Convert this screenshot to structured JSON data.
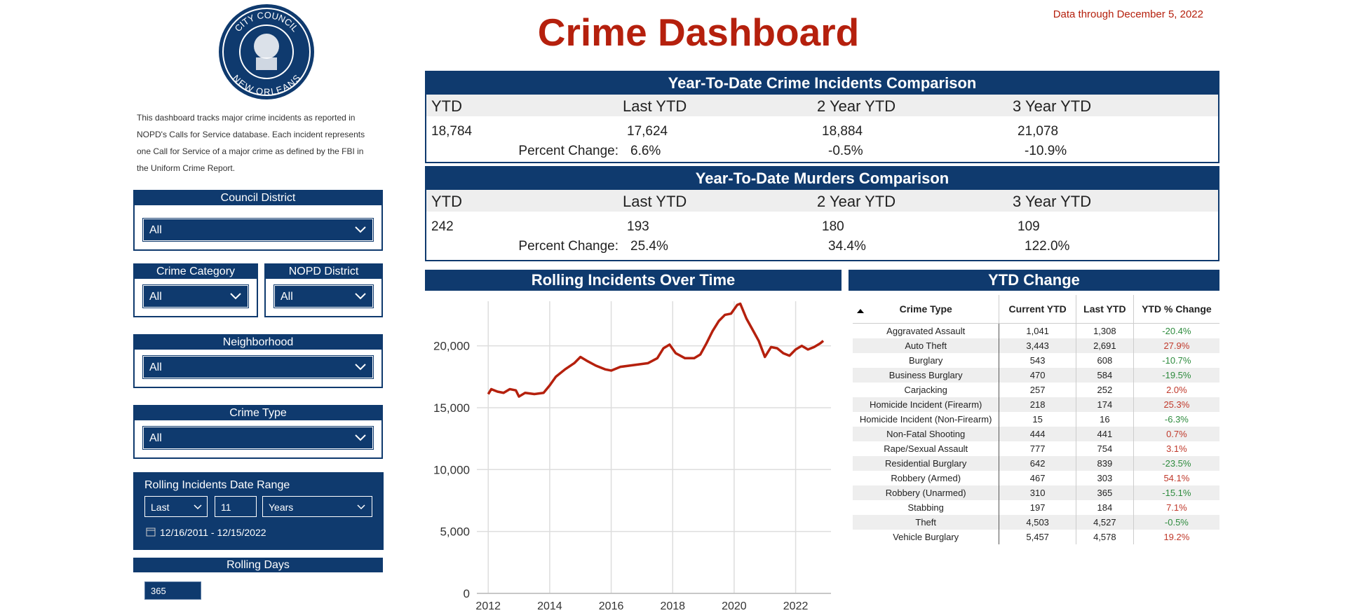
{
  "header": {
    "title": "Crime Dashboard",
    "data_through": "Data through December 5, 2022"
  },
  "logo": {
    "top_text": "CITY COUNCIL",
    "bottom_text": "NEW ORLEANS"
  },
  "description": "This dashboard tracks major crime incidents as reported in NOPD's Calls for Service database. Each incident represents one Call for Service of a major crime as defined by the FBI in the Uniform Crime Report.",
  "filters": {
    "council_district": {
      "label": "Council District",
      "value": "All"
    },
    "crime_category": {
      "label": "Crime Category",
      "value": "All"
    },
    "nopd_district": {
      "label": "NOPD District",
      "value": "All"
    },
    "neighborhood": {
      "label": "Neighborhood",
      "value": "All"
    },
    "crime_type": {
      "label": "Crime Type",
      "value": "All"
    },
    "date_range": {
      "label": "Rolling Incidents Date Range",
      "mode": "Last",
      "count": "11",
      "unit": "Years",
      "range": "12/16/2011 - 12/15/2022"
    },
    "rolling_days": {
      "label": "Rolling Days",
      "value": "365"
    }
  },
  "ytd_incidents": {
    "title": "Year-To-Date Crime Incidents Comparison",
    "columns": [
      "YTD",
      "Last YTD",
      "2 Year YTD",
      "3 Year YTD"
    ],
    "values": [
      "18,784",
      "17,624",
      "18,884",
      "21,078"
    ],
    "change_label": "Percent Change:",
    "changes": [
      "6.6%",
      "-0.5%",
      "-10.9%"
    ]
  },
  "ytd_murders": {
    "title": "Year-To-Date Murders Comparison",
    "columns": [
      "YTD",
      "Last YTD",
      "2 Year YTD",
      "3 Year YTD"
    ],
    "values": [
      "242",
      "193",
      "180",
      "109"
    ],
    "change_label": "Percent Change:",
    "changes": [
      "25.4%",
      "34.4%",
      "122.0%"
    ]
  },
  "chart_data": {
    "type": "line",
    "title": "Rolling Incidents Over Time",
    "color": "#b5200d",
    "grid": true,
    "x": [
      2012.0,
      2012.1,
      2012.3,
      2012.5,
      2012.7,
      2012.9,
      2013.0,
      2013.2,
      2013.5,
      2013.8,
      2014.0,
      2014.2,
      2014.5,
      2014.8,
      2015.0,
      2015.2,
      2015.5,
      2015.8,
      2016.0,
      2016.3,
      2016.6,
      2016.9,
      2017.2,
      2017.5,
      2017.7,
      2017.9,
      2018.1,
      2018.4,
      2018.7,
      2018.9,
      2019.1,
      2019.3,
      2019.5,
      2019.7,
      2019.9,
      2020.1,
      2020.2,
      2020.4,
      2020.6,
      2020.8,
      2021.0,
      2021.2,
      2021.4,
      2021.6,
      2021.8,
      2022.0,
      2022.2,
      2022.4,
      2022.6,
      2022.8,
      2022.9
    ],
    "values": [
      16100,
      16500,
      16300,
      16200,
      16500,
      16400,
      15900,
      16200,
      16100,
      16200,
      16800,
      17500,
      18100,
      18600,
      19100,
      18800,
      18400,
      18100,
      18000,
      18300,
      18400,
      18500,
      18600,
      19000,
      19800,
      20100,
      19400,
      19000,
      19000,
      19300,
      20200,
      21200,
      22000,
      22500,
      22600,
      23300,
      23400,
      22200,
      21300,
      20400,
      19100,
      19900,
      19800,
      19400,
      19200,
      19700,
      20000,
      19700,
      19900,
      20200,
      20400
    ],
    "xlim": [
      2011.63,
      2023.15
    ],
    "xticks": [
      2012,
      2014,
      2016,
      2018,
      2020,
      2022
    ],
    "ylim": [
      0,
      23600
    ],
    "yticks": [
      0,
      {
        "value": 5000,
        "label": "5,000"
      },
      {
        "value": 10000,
        "label": "10,000"
      },
      {
        "value": 15000,
        "label": "15,000"
      },
      {
        "value": 20000,
        "label": "20,000"
      }
    ]
  },
  "ytd_change": {
    "title": "YTD Change",
    "columns": [
      "Crime Type",
      "Current YTD",
      "Last YTD",
      "YTD % Change"
    ],
    "rows": [
      [
        "Aggravated Assault",
        "1,041",
        "1,308",
        "-20.4%"
      ],
      [
        "Auto Theft",
        "3,443",
        "2,691",
        "27.9%"
      ],
      [
        "Burglary",
        "543",
        "608",
        "-10.7%"
      ],
      [
        "Business Burglary",
        "470",
        "584",
        "-19.5%"
      ],
      [
        "Carjacking",
        "257",
        "252",
        "2.0%"
      ],
      [
        "Homicide Incident (Firearm)",
        "218",
        "174",
        "25.3%"
      ],
      [
        "Homicide Incident (Non-Firearm)",
        "15",
        "16",
        "-6.3%"
      ],
      [
        "Non-Fatal Shooting",
        "444",
        "441",
        "0.7%"
      ],
      [
        "Rape/Sexual Assault",
        "777",
        "754",
        "3.1%"
      ],
      [
        "Residential Burglary",
        "642",
        "839",
        "-23.5%"
      ],
      [
        "Robbery (Armed)",
        "467",
        "303",
        "54.1%"
      ],
      [
        "Robbery (Unarmed)",
        "310",
        "365",
        "-15.1%"
      ],
      [
        "Stabbing",
        "197",
        "184",
        "7.1%"
      ],
      [
        "Theft",
        "4,503",
        "4,527",
        "-0.5%"
      ],
      [
        "Vehicle Burglary",
        "5,457",
        "4,578",
        "19.2%"
      ]
    ],
    "up_color": "#c0392b",
    "down_color": "#2e8b3e"
  }
}
